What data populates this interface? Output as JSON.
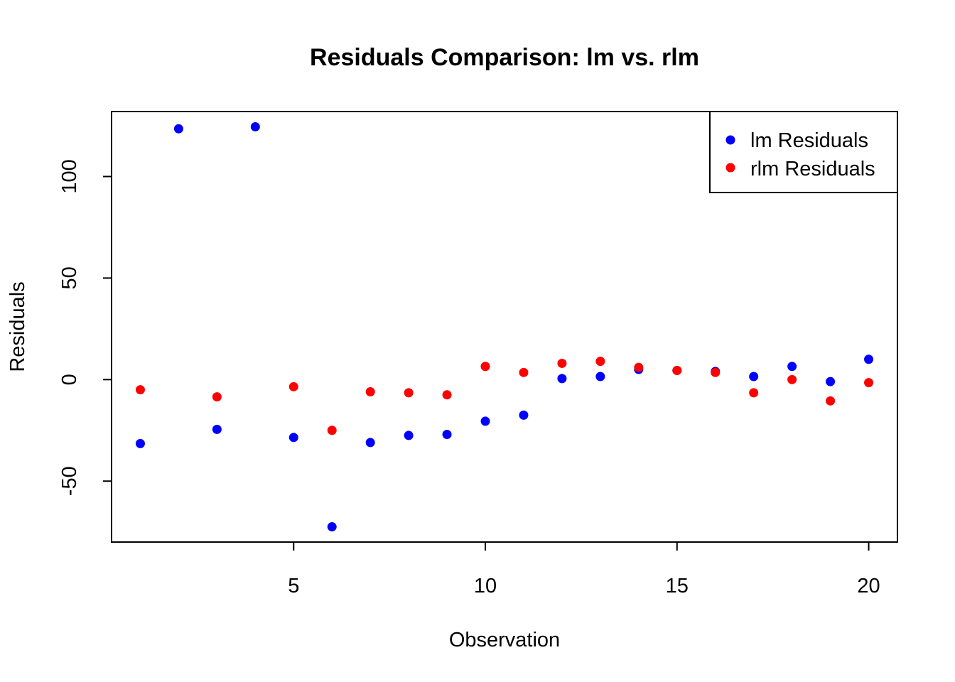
{
  "chart_data": {
    "type": "scatter",
    "title": "Residuals Comparison: lm vs. rlm",
    "xlabel": "Observation",
    "ylabel": "Residuals",
    "xlim": [
      0.25,
      20.75
    ],
    "ylim": [
      -80,
      132
    ],
    "xticks": [
      5,
      10,
      15,
      20
    ],
    "yticks": [
      -50,
      0,
      50,
      100
    ],
    "grid": false,
    "legend_position": "top-right",
    "x": [
      1,
      2,
      3,
      4,
      5,
      6,
      7,
      8,
      9,
      10,
      11,
      12,
      13,
      14,
      15,
      16,
      17,
      18,
      19,
      20
    ],
    "series": [
      {
        "name": "lm Residuals",
        "color": "#0000ff",
        "values": [
          -31.5,
          123.5,
          -24.5,
          124.5,
          -28.5,
          -72.5,
          -31,
          -27.5,
          -27,
          -20.5,
          -17.5,
          0.5,
          1.5,
          5,
          4.5,
          4,
          1.5,
          6.5,
          -1,
          10
        ]
      },
      {
        "name": "rlm Residuals",
        "color": "#ff0000",
        "values": [
          -5,
          null,
          -8.5,
          null,
          -3.5,
          -25,
          -6,
          -6.5,
          -7.5,
          6.5,
          3.5,
          8,
          9,
          6,
          4.5,
          3.5,
          -6.5,
          0,
          -10.5,
          -1.5
        ]
      }
    ]
  }
}
